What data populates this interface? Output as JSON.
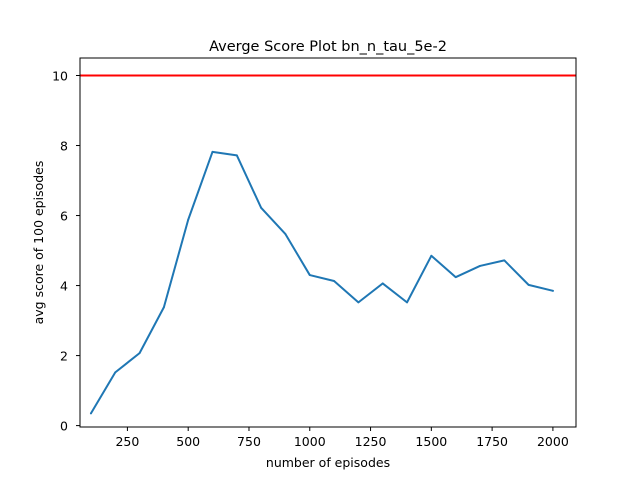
{
  "chart_data": {
    "type": "line",
    "title": "Averge Score Plot bn_n_tau_5e-2",
    "xlabel": "number of episodes",
    "ylabel": "avg score of 100 episodes",
    "xlim": [
      55,
      2095
    ],
    "ylim": [
      -0.04,
      10.5
    ],
    "x_ticks": [
      250,
      500,
      750,
      1000,
      1250,
      1500,
      1750,
      2000
    ],
    "y_ticks": [
      0,
      2,
      4,
      6,
      8,
      10
    ],
    "grid": false,
    "series": [
      {
        "color": "#1f77b4",
        "x": [
          100,
          200,
          300,
          400,
          500,
          600,
          700,
          800,
          900,
          1000,
          1100,
          1200,
          1300,
          1400,
          1500,
          1600,
          1700,
          1800,
          1900,
          2000
        ],
        "y": [
          0.35,
          1.52,
          2.07,
          3.38,
          5.88,
          7.82,
          7.72,
          6.22,
          5.47,
          4.3,
          4.13,
          3.52,
          4.06,
          3.52,
          4.85,
          4.24,
          4.56,
          4.72,
          4.02,
          3.85
        ]
      }
    ],
    "reference_line": {
      "y": 10,
      "color": "#ff0000"
    }
  }
}
